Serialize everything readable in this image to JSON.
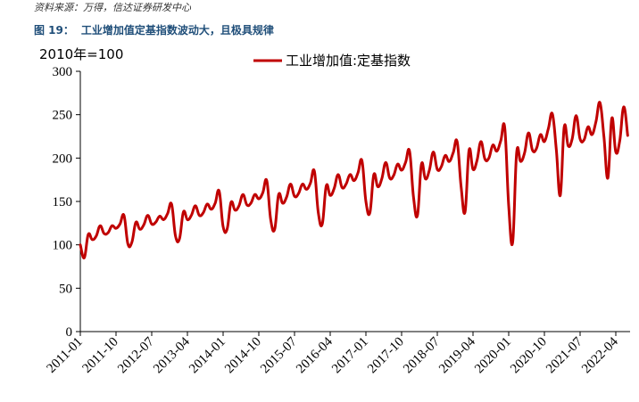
{
  "header": {
    "source": "资料来源：万得，信达证券研发中心",
    "figure_no": "图 19：",
    "figure_title": "工业增加值定基指数波动大，且极具规律"
  },
  "colors": {
    "series": "#c00000",
    "axis": "#000000"
  },
  "chart_data": {
    "type": "line",
    "title": "",
    "unit_label": "2010年=100",
    "xlabel": "",
    "ylabel": "",
    "ylim": [
      0,
      300
    ],
    "yticks": [
      0,
      50,
      100,
      150,
      200,
      250,
      300
    ],
    "grid": false,
    "legend_position": "top-center",
    "x_tick_labels": [
      "2011-01",
      "2011-10",
      "2012-07",
      "2013-04",
      "2014-01",
      "2014-10",
      "2015-07",
      "2016-04",
      "2017-01",
      "2017-10",
      "2018-07",
      "2019-04",
      "2020-01",
      "2020-10",
      "2021-07",
      "2022-04"
    ],
    "series": [
      {
        "name": "工业增加值:定基指数",
        "points": [
          [
            "2011-01",
            100
          ],
          [
            "2011-02",
            85
          ],
          [
            "2011-03",
            112
          ],
          [
            "2011-04",
            106
          ],
          [
            "2011-05",
            110
          ],
          [
            "2011-06",
            122
          ],
          [
            "2011-07",
            113
          ],
          [
            "2011-08",
            114
          ],
          [
            "2011-09",
            122
          ],
          [
            "2011-10",
            119
          ],
          [
            "2011-11",
            124
          ],
          [
            "2011-12",
            134
          ],
          [
            "2012-01",
            101
          ],
          [
            "2012-02",
            103
          ],
          [
            "2012-03",
            126
          ],
          [
            "2012-04",
            118
          ],
          [
            "2012-05",
            123
          ],
          [
            "2012-06",
            134
          ],
          [
            "2012-07",
            124
          ],
          [
            "2012-08",
            126
          ],
          [
            "2012-09",
            133
          ],
          [
            "2012-10",
            129
          ],
          [
            "2012-11",
            136
          ],
          [
            "2012-12",
            147
          ],
          [
            "2013-01",
            110
          ],
          [
            "2013-02",
            107
          ],
          [
            "2013-03",
            138
          ],
          [
            "2013-04",
            129
          ],
          [
            "2013-05",
            134
          ],
          [
            "2013-06",
            145
          ],
          [
            "2013-07",
            134
          ],
          [
            "2013-08",
            137
          ],
          [
            "2013-09",
            147
          ],
          [
            "2013-10",
            141
          ],
          [
            "2013-11",
            148
          ],
          [
            "2013-12",
            162
          ],
          [
            "2014-01",
            121
          ],
          [
            "2014-02",
            118
          ],
          [
            "2014-03",
            149
          ],
          [
            "2014-04",
            140
          ],
          [
            "2014-05",
            145
          ],
          [
            "2014-06",
            158
          ],
          [
            "2014-07",
            146
          ],
          [
            "2014-08",
            148
          ],
          [
            "2014-09",
            158
          ],
          [
            "2014-10",
            153
          ],
          [
            "2014-11",
            160
          ],
          [
            "2014-12",
            174
          ],
          [
            "2015-01",
            129
          ],
          [
            "2015-02",
            118
          ],
          [
            "2015-03",
            158
          ],
          [
            "2015-04",
            148
          ],
          [
            "2015-05",
            155
          ],
          [
            "2015-06",
            170
          ],
          [
            "2015-07",
            156
          ],
          [
            "2015-08",
            159
          ],
          [
            "2015-09",
            170
          ],
          [
            "2015-10",
            164
          ],
          [
            "2015-11",
            171
          ],
          [
            "2015-12",
            185
          ],
          [
            "2016-01",
            137
          ],
          [
            "2016-02",
            124
          ],
          [
            "2016-03",
            168
          ],
          [
            "2016-04",
            157
          ],
          [
            "2016-05",
            165
          ],
          [
            "2016-06",
            181
          ],
          [
            "2016-07",
            166
          ],
          [
            "2016-08",
            170
          ],
          [
            "2016-09",
            181
          ],
          [
            "2016-10",
            174
          ],
          [
            "2016-11",
            183
          ],
          [
            "2016-12",
            197
          ],
          [
            "2017-01",
            150
          ],
          [
            "2017-02",
            137
          ],
          [
            "2017-03",
            181
          ],
          [
            "2017-04",
            167
          ],
          [
            "2017-05",
            176
          ],
          [
            "2017-06",
            195
          ],
          [
            "2017-07",
            177
          ],
          [
            "2017-08",
            180
          ],
          [
            "2017-09",
            193
          ],
          [
            "2017-10",
            186
          ],
          [
            "2017-11",
            195
          ],
          [
            "2017-12",
            208
          ],
          [
            "2018-01",
            155
          ],
          [
            "2018-02",
            134
          ],
          [
            "2018-03",
            193
          ],
          [
            "2018-04",
            176
          ],
          [
            "2018-05",
            186
          ],
          [
            "2018-06",
            207
          ],
          [
            "2018-07",
            187
          ],
          [
            "2018-08",
            190
          ],
          [
            "2018-09",
            203
          ],
          [
            "2018-10",
            196
          ],
          [
            "2018-11",
            206
          ],
          [
            "2018-12",
            219
          ],
          [
            "2019-01",
            167
          ],
          [
            "2019-02",
            138
          ],
          [
            "2019-03",
            209
          ],
          [
            "2019-04",
            187
          ],
          [
            "2019-05",
            197
          ],
          [
            "2019-06",
            219
          ],
          [
            "2019-07",
            199
          ],
          [
            "2019-08",
            200
          ],
          [
            "2019-09",
            215
          ],
          [
            "2019-10",
            208
          ],
          [
            "2019-11",
            220
          ],
          [
            "2019-12",
            235
          ],
          [
            "2020-01",
            145
          ],
          [
            "2020-02",
            103
          ],
          [
            "2020-03",
            206
          ],
          [
            "2020-04",
            196
          ],
          [
            "2020-05",
            206
          ],
          [
            "2020-06",
            229
          ],
          [
            "2020-07",
            209
          ],
          [
            "2020-08",
            211
          ],
          [
            "2020-09",
            227
          ],
          [
            "2020-10",
            219
          ],
          [
            "2020-11",
            234
          ],
          [
            "2020-12",
            251
          ],
          [
            "2021-01",
            210
          ],
          [
            "2021-02",
            157
          ],
          [
            "2021-03",
            236
          ],
          [
            "2021-04",
            214
          ],
          [
            "2021-05",
            222
          ],
          [
            "2021-06",
            249
          ],
          [
            "2021-07",
            222
          ],
          [
            "2021-08",
            221
          ],
          [
            "2021-09",
            236
          ],
          [
            "2021-10",
            227
          ],
          [
            "2021-11",
            242
          ],
          [
            "2021-12",
            264
          ],
          [
            "2022-01",
            225
          ],
          [
            "2022-02",
            177
          ],
          [
            "2022-03",
            246
          ],
          [
            "2022-04",
            207
          ],
          [
            "2022-05",
            220
          ],
          [
            "2022-06",
            259
          ],
          [
            "2022-07",
            226
          ]
        ]
      }
    ]
  }
}
